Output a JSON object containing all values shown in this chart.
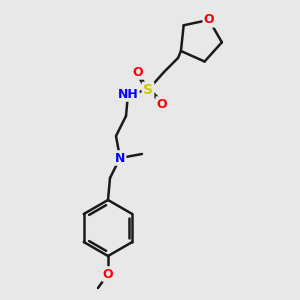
{
  "bg_color": "#e8e8e8",
  "bond_color": "#1a1a1a",
  "bond_lw": 1.8,
  "atom_colors": {
    "O": "#ff0000",
    "N": "#0000ff",
    "S": "#cccc00",
    "C": "#1a1a1a",
    "H": "#888888"
  },
  "font_size": 9,
  "font_size_small": 7.5
}
